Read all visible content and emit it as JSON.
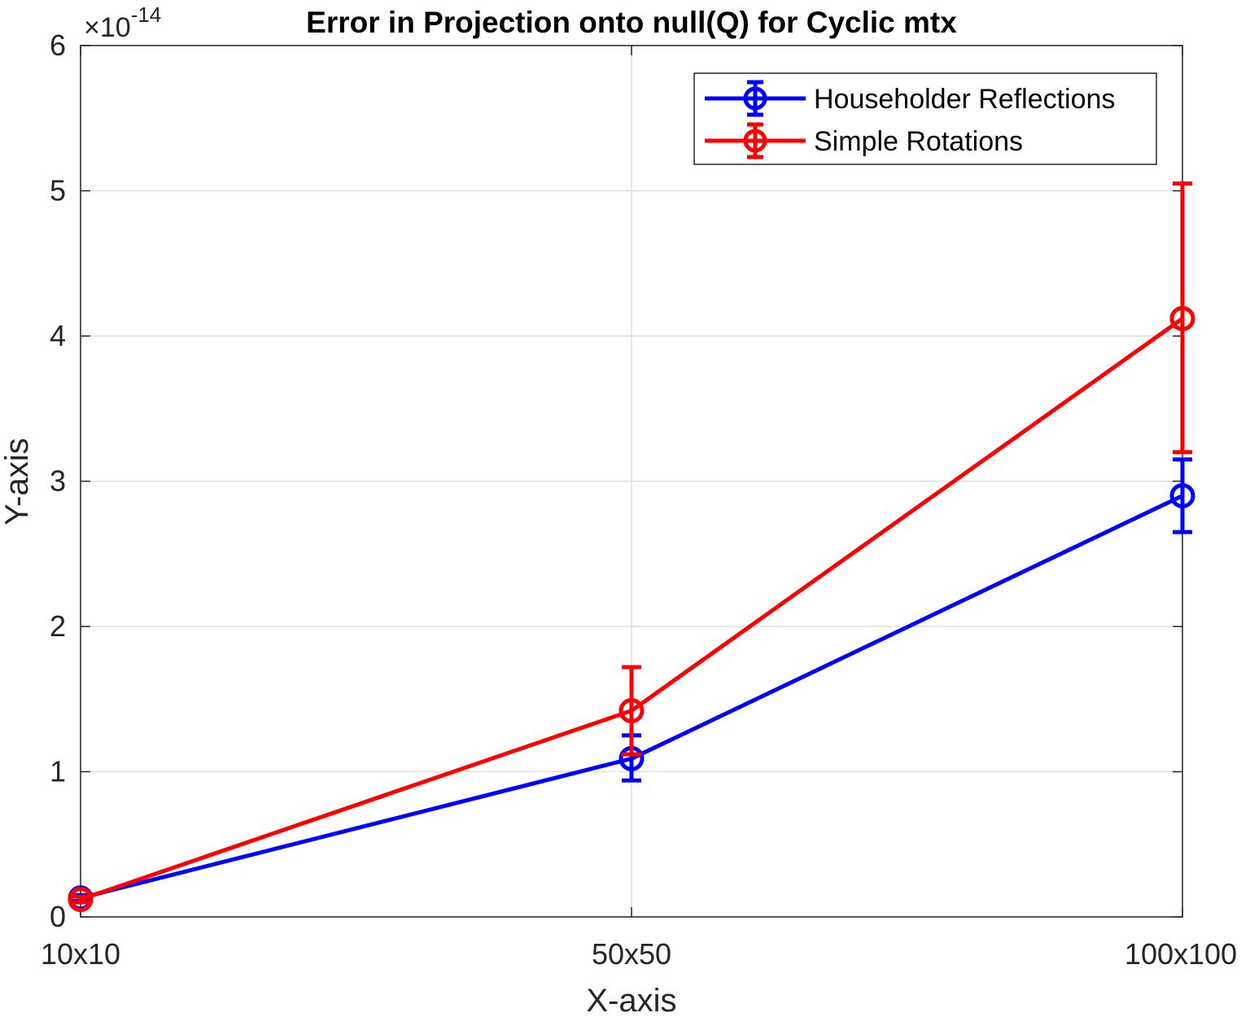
{
  "chart_data": {
    "type": "line",
    "title": "Error in Projection onto null(Q) for Cyclic mtx",
    "xlabel": "X-axis",
    "ylabel": "Y-axis",
    "categories": [
      "10x10",
      "50x50",
      "100x100"
    ],
    "y_exponent_base": "10",
    "y_exponent_power": "-14",
    "y_exponent_prefix": "×",
    "ylim": [
      0,
      6
    ],
    "yticks": [
      "0",
      "1",
      "2",
      "3",
      "4",
      "5",
      "6"
    ],
    "grid": true,
    "legend_position": "top-right",
    "series": [
      {
        "name": "Householder Reflections",
        "color": "#0000ff",
        "values": [
          0.13,
          1.09,
          2.9
        ],
        "err_low": [
          0.02,
          0.15,
          0.25
        ],
        "err_high": [
          0.02,
          0.16,
          0.25
        ]
      },
      {
        "name": "Simple Rotations",
        "color": "#ff0000",
        "values": [
          0.12,
          1.42,
          4.12
        ],
        "err_low": [
          0.02,
          0.3,
          0.92
        ],
        "err_high": [
          0.02,
          0.3,
          0.93
        ]
      }
    ]
  }
}
